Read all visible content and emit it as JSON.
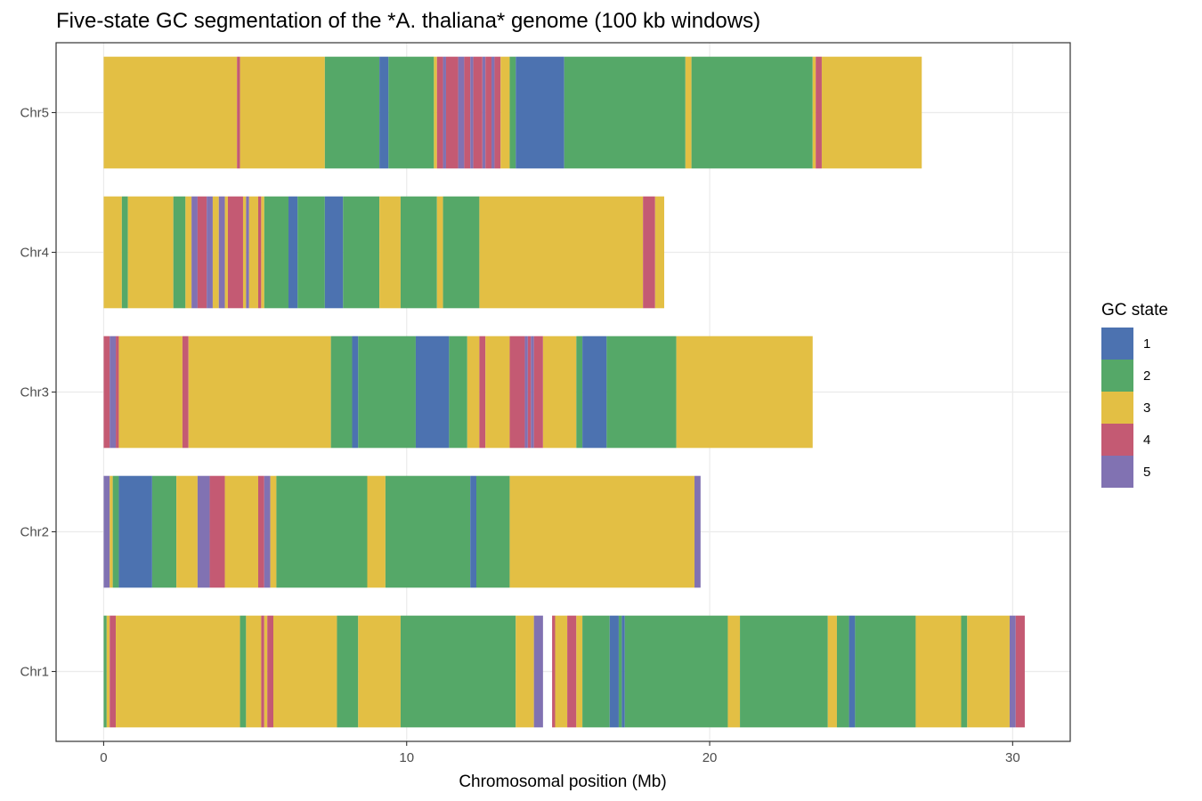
{
  "chart_data": {
    "type": "bar",
    "subtype": "horizontal-segmented",
    "title": "Five-state GC segmentation of the *A. thaliana* genome (100 kb windows)",
    "xlabel": "Chromosomal position (Mb)",
    "ylabel": "",
    "xlim": [
      -1.57,
      31.9
    ],
    "x_ticks": [
      0,
      10,
      20,
      30
    ],
    "grid": true,
    "legend": {
      "title": "GC state",
      "position": "right",
      "entries": [
        {
          "state": "1",
          "color": "#4c72b0"
        },
        {
          "state": "2",
          "color": "#55a868"
        },
        {
          "state": "3",
          "color": "#e3bf44"
        },
        {
          "state": "4",
          "color": "#c45a73"
        },
        {
          "state": "5",
          "color": "#8172b2"
        }
      ]
    },
    "categories": [
      "Chr1",
      "Chr2",
      "Chr3",
      "Chr4",
      "Chr5"
    ],
    "chromosomes": [
      {
        "name": "Chr1",
        "segments": [
          [
            0.0,
            0.1,
            2
          ],
          [
            0.1,
            0.2,
            3
          ],
          [
            0.2,
            0.4,
            4
          ],
          [
            0.4,
            4.5,
            3
          ],
          [
            4.5,
            4.7,
            2
          ],
          [
            4.7,
            5.2,
            3
          ],
          [
            5.2,
            5.3,
            4
          ],
          [
            5.3,
            5.4,
            3
          ],
          [
            5.4,
            5.6,
            4
          ],
          [
            5.6,
            7.7,
            3
          ],
          [
            7.7,
            8.4,
            2
          ],
          [
            8.4,
            9.8,
            3
          ],
          [
            9.8,
            13.6,
            2
          ],
          [
            13.6,
            14.2,
            3
          ],
          [
            14.2,
            14.5,
            5
          ],
          [
            14.8,
            14.9,
            4
          ],
          [
            14.9,
            15.3,
            3
          ],
          [
            15.3,
            15.6,
            4
          ],
          [
            15.6,
            15.8,
            3
          ],
          [
            15.8,
            16.7,
            2
          ],
          [
            16.7,
            17.0,
            1
          ],
          [
            17.0,
            17.1,
            2
          ],
          [
            17.1,
            17.2,
            1
          ],
          [
            17.2,
            20.6,
            2
          ],
          [
            20.6,
            21.0,
            3
          ],
          [
            21.0,
            23.9,
            2
          ],
          [
            23.9,
            24.2,
            3
          ],
          [
            24.2,
            24.6,
            2
          ],
          [
            24.6,
            24.8,
            1
          ],
          [
            24.8,
            26.8,
            2
          ],
          [
            26.8,
            28.3,
            3
          ],
          [
            28.3,
            28.5,
            2
          ],
          [
            28.5,
            29.9,
            3
          ],
          [
            29.9,
            30.1,
            5
          ],
          [
            30.1,
            30.4,
            4
          ]
        ]
      },
      {
        "name": "Chr2",
        "segments": [
          [
            0.0,
            0.2,
            5
          ],
          [
            0.2,
            0.3,
            3
          ],
          [
            0.3,
            0.5,
            2
          ],
          [
            0.5,
            1.6,
            1
          ],
          [
            1.6,
            2.4,
            2
          ],
          [
            2.4,
            3.1,
            3
          ],
          [
            3.1,
            3.5,
            5
          ],
          [
            3.5,
            4.0,
            4
          ],
          [
            4.0,
            5.1,
            3
          ],
          [
            5.1,
            5.3,
            4
          ],
          [
            5.3,
            5.5,
            5
          ],
          [
            5.5,
            5.7,
            3
          ],
          [
            5.7,
            8.7,
            2
          ],
          [
            8.7,
            9.3,
            3
          ],
          [
            9.3,
            12.1,
            2
          ],
          [
            12.1,
            12.3,
            1
          ],
          [
            12.3,
            13.4,
            2
          ],
          [
            13.4,
            19.5,
            3
          ],
          [
            19.5,
            19.7,
            5
          ]
        ]
      },
      {
        "name": "Chr3",
        "segments": [
          [
            0.0,
            0.2,
            4
          ],
          [
            0.2,
            0.4,
            5
          ],
          [
            0.4,
            0.5,
            4
          ],
          [
            0.5,
            2.6,
            3
          ],
          [
            2.6,
            2.8,
            4
          ],
          [
            2.8,
            7.5,
            3
          ],
          [
            7.5,
            8.2,
            2
          ],
          [
            8.2,
            8.4,
            1
          ],
          [
            8.4,
            10.3,
            2
          ],
          [
            10.3,
            11.4,
            1
          ],
          [
            11.4,
            12.0,
            2
          ],
          [
            12.0,
            12.4,
            3
          ],
          [
            12.4,
            12.6,
            4
          ],
          [
            12.6,
            13.4,
            3
          ],
          [
            13.4,
            13.9,
            4
          ],
          [
            13.9,
            14.0,
            5
          ],
          [
            14.0,
            14.1,
            4
          ],
          [
            14.1,
            14.2,
            5
          ],
          [
            14.2,
            14.5,
            4
          ],
          [
            14.5,
            15.6,
            3
          ],
          [
            15.6,
            15.8,
            2
          ],
          [
            15.8,
            16.6,
            1
          ],
          [
            16.6,
            18.9,
            2
          ],
          [
            18.9,
            23.4,
            3
          ]
        ]
      },
      {
        "name": "Chr4",
        "segments": [
          [
            0.0,
            0.6,
            3
          ],
          [
            0.6,
            0.8,
            2
          ],
          [
            0.8,
            2.3,
            3
          ],
          [
            2.3,
            2.7,
            2
          ],
          [
            2.7,
            2.9,
            3
          ],
          [
            2.9,
            3.1,
            5
          ],
          [
            3.1,
            3.4,
            4
          ],
          [
            3.4,
            3.6,
            5
          ],
          [
            3.6,
            3.8,
            3
          ],
          [
            3.8,
            4.0,
            5
          ],
          [
            4.0,
            4.1,
            3
          ],
          [
            4.1,
            4.6,
            4
          ],
          [
            4.6,
            4.7,
            3
          ],
          [
            4.7,
            4.8,
            5
          ],
          [
            4.8,
            5.1,
            3
          ],
          [
            5.1,
            5.2,
            4
          ],
          [
            5.2,
            5.3,
            3
          ],
          [
            5.3,
            6.1,
            2
          ],
          [
            6.1,
            6.4,
            1
          ],
          [
            6.4,
            7.3,
            2
          ],
          [
            7.3,
            7.9,
            1
          ],
          [
            7.9,
            9.1,
            2
          ],
          [
            9.1,
            9.8,
            3
          ],
          [
            9.8,
            11.0,
            2
          ],
          [
            11.0,
            11.2,
            3
          ],
          [
            11.2,
            12.4,
            2
          ],
          [
            12.4,
            17.8,
            3
          ],
          [
            17.8,
            18.2,
            4
          ],
          [
            18.2,
            18.5,
            3
          ]
        ]
      },
      {
        "name": "Chr5",
        "segments": [
          [
            0.0,
            4.4,
            3
          ],
          [
            4.4,
            4.5,
            4
          ],
          [
            4.5,
            7.3,
            3
          ],
          [
            7.3,
            9.1,
            2
          ],
          [
            9.1,
            9.4,
            1
          ],
          [
            9.4,
            10.9,
            2
          ],
          [
            10.9,
            11.0,
            3
          ],
          [
            11.0,
            11.2,
            4
          ],
          [
            11.2,
            11.3,
            5
          ],
          [
            11.3,
            11.7,
            4
          ],
          [
            11.7,
            11.9,
            5
          ],
          [
            11.9,
            12.1,
            4
          ],
          [
            12.1,
            12.2,
            5
          ],
          [
            12.2,
            12.5,
            4
          ],
          [
            12.5,
            12.6,
            5
          ],
          [
            12.6,
            12.8,
            4
          ],
          [
            12.8,
            12.9,
            5
          ],
          [
            12.9,
            13.1,
            4
          ],
          [
            13.1,
            13.4,
            3
          ],
          [
            13.4,
            13.6,
            2
          ],
          [
            13.6,
            15.2,
            1
          ],
          [
            15.2,
            19.2,
            2
          ],
          [
            19.2,
            19.4,
            3
          ],
          [
            19.4,
            23.4,
            2
          ],
          [
            23.4,
            23.5,
            3
          ],
          [
            23.5,
            23.7,
            4
          ],
          [
            23.7,
            27.0,
            3
          ]
        ]
      }
    ]
  }
}
